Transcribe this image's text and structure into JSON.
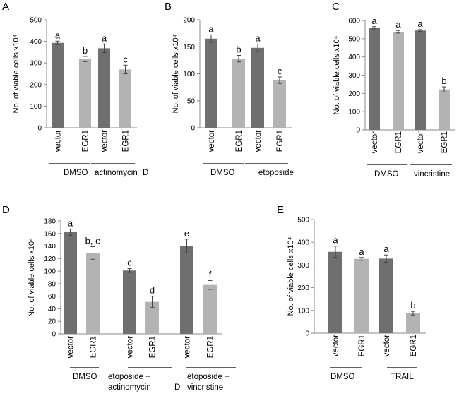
{
  "colors": {
    "dark": "#6f6f72",
    "light": "#b3b3b5",
    "axis": "#888888",
    "text": "#000000"
  },
  "chart_data": [
    {
      "panel": "A",
      "type": "bar",
      "ylabel": "No. of viable cells x10⁴",
      "ylim": [
        0,
        500
      ],
      "yticks": [
        "0",
        "100",
        "200",
        "300",
        "400",
        "500"
      ],
      "categories": [
        "vector",
        "EGR1",
        "vector",
        "EGR1"
      ],
      "values": [
        393,
        318,
        368,
        270
      ],
      "errors": [
        8,
        12,
        20,
        20
      ],
      "letters": [
        "a",
        "b",
        "a",
        "c"
      ],
      "letter_color": "#000000",
      "groups": [
        {
          "label": "DMSO"
        },
        {
          "label": "actinomycin"
        }
      ],
      "extra_label": "D"
    },
    {
      "panel": "B",
      "type": "bar",
      "ylabel": "No. of viable cells x10⁴",
      "ylim": [
        0,
        200
      ],
      "yticks": [
        "0",
        "50",
        "100",
        "150",
        "200"
      ],
      "categories": [
        "vector",
        "EGR1",
        "vector",
        "EGR1"
      ],
      "values": [
        165,
        128,
        148,
        88
      ],
      "errors": [
        7,
        6,
        7,
        6
      ],
      "letters": [
        "a",
        "b",
        "a",
        "c"
      ],
      "letter_color": "#000000",
      "groups": [
        {
          "label": "DMSO"
        },
        {
          "label": "etoposide"
        }
      ]
    },
    {
      "panel": "C",
      "type": "bar",
      "ylabel": "No. of viable cells x10⁴",
      "ylim": [
        0,
        600
      ],
      "yticks": [
        "0",
        "100",
        "200",
        "300",
        "400",
        "500",
        "600"
      ],
      "categories": [
        "vector",
        "EGR1",
        "vector",
        "EGR1"
      ],
      "values": [
        560,
        538,
        545,
        222
      ],
      "errors": [
        6,
        7,
        5,
        14
      ],
      "letters": [
        "a",
        "a",
        "a",
        "b"
      ],
      "letter_color": "#777777",
      "groups": [
        {
          "label": "DMSO"
        },
        {
          "label": "vincristine"
        }
      ]
    },
    {
      "panel": "D",
      "type": "bar",
      "ylabel": "No. of viable cells x10⁴",
      "ylim": [
        0,
        180
      ],
      "yticks": [
        "0",
        "20",
        "40",
        "60",
        "80",
        "100",
        "120",
        "140",
        "160",
        "180"
      ],
      "categories": [
        "vector",
        "EGR1",
        "vector",
        "EGR1",
        "vector",
        "EGR1"
      ],
      "values": [
        162,
        129,
        101,
        51,
        140,
        78
      ],
      "errors": [
        5,
        10,
        3,
        9,
        11,
        7
      ],
      "letters": [
        "a",
        "b, e",
        "c",
        "d",
        "e",
        "f"
      ],
      "letter_color": "#777777",
      "groups": [
        {
          "label": "DMSO"
        },
        {
          "label": "etoposide +",
          "label2": "actinomycin"
        },
        {
          "label": "etoposide +",
          "label2": "vincristine"
        }
      ],
      "extra_label": "D"
    },
    {
      "panel": "E",
      "type": "bar",
      "ylabel": "No. of viable cells x10⁴",
      "ylim": [
        0,
        500
      ],
      "yticks": [
        "0",
        "100",
        "200",
        "300",
        "400",
        "500"
      ],
      "categories": [
        "vector",
        "EGR1",
        "vector",
        "EGR1"
      ],
      "values": [
        358,
        327,
        328,
        88
      ],
      "errors": [
        25,
        6,
        16,
        8
      ],
      "letters": [
        "a",
        "a",
        "a",
        "b"
      ],
      "letter_color": "#000000",
      "groups": [
        {
          "label": "DMSO"
        },
        {
          "label": "TRAIL"
        }
      ]
    }
  ]
}
